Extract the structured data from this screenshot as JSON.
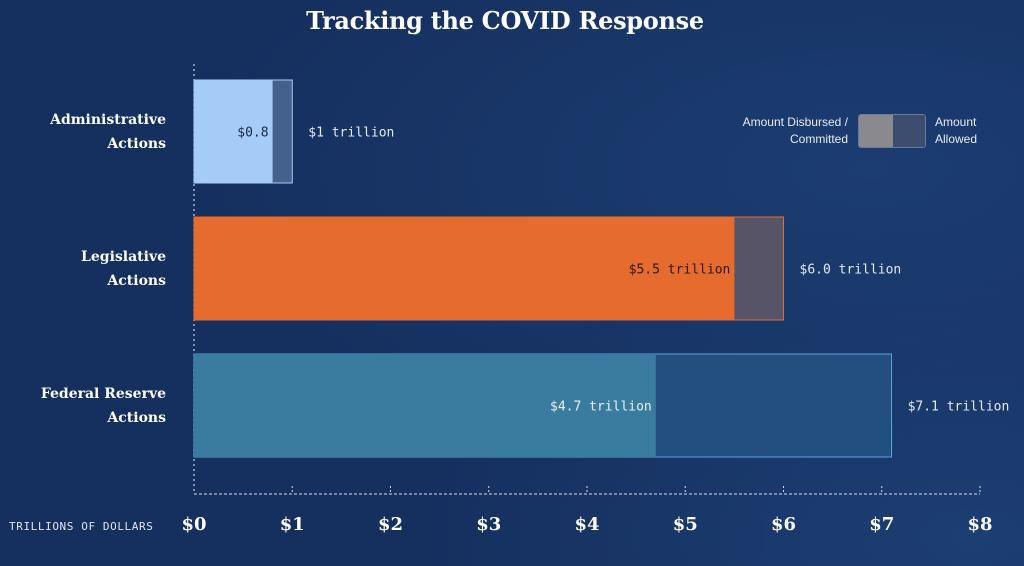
{
  "chart_data": {
    "type": "bar",
    "orientation": "horizontal",
    "stacked_overlay": true,
    "title": "Tracking the COVID Response",
    "xlabel": "TRILLIONS OF DOLLARS",
    "ylabel": "",
    "xlim": [
      0,
      8
    ],
    "x_ticks": [
      0,
      1,
      2,
      3,
      4,
      5,
      6,
      7,
      8
    ],
    "x_tick_labels": [
      "$0",
      "$1",
      "$2",
      "$3",
      "$4",
      "$5",
      "$6",
      "$7",
      "$8"
    ],
    "grid": false,
    "legend_position": "top-right",
    "legend": {
      "disbursed_label_line1": "Amount Disbursed /",
      "disbursed_label_line2": "Committed",
      "allowed_label_line1": "Amount",
      "allowed_label_line2": "Allowed"
    },
    "categories": [
      {
        "line1": "Administrative",
        "line2": "Actions"
      },
      {
        "line1": "Legislative",
        "line2": "Actions"
      },
      {
        "line1": "Federal Reserve",
        "line2": "Actions"
      }
    ],
    "series": [
      {
        "name": "Amount Disbursed / Committed",
        "values": [
          0.8,
          5.5,
          4.7
        ]
      },
      {
        "name": "Amount Allowed",
        "values": [
          1.0,
          6.0,
          7.1
        ]
      }
    ],
    "disbursed_labels": [
      "$0.8",
      "$5.5 trillion",
      "$4.7 trillion"
    ],
    "allowed_labels": [
      "$1 trillion",
      "$6.0 trillion",
      "$7.1 trillion"
    ],
    "colors": {
      "disbursed": [
        "#a6cbf6",
        "#e56b2e",
        "#3a7ca0"
      ],
      "allowed": [
        "#44608c",
        "#585468",
        "#234f80"
      ],
      "border": [
        "#a6cbf6",
        "#e56b2e",
        "#5aa4e0"
      ],
      "disbursed_text": [
        "#1a2a44",
        "#2a1a10",
        "#e8f0f8"
      ]
    }
  }
}
